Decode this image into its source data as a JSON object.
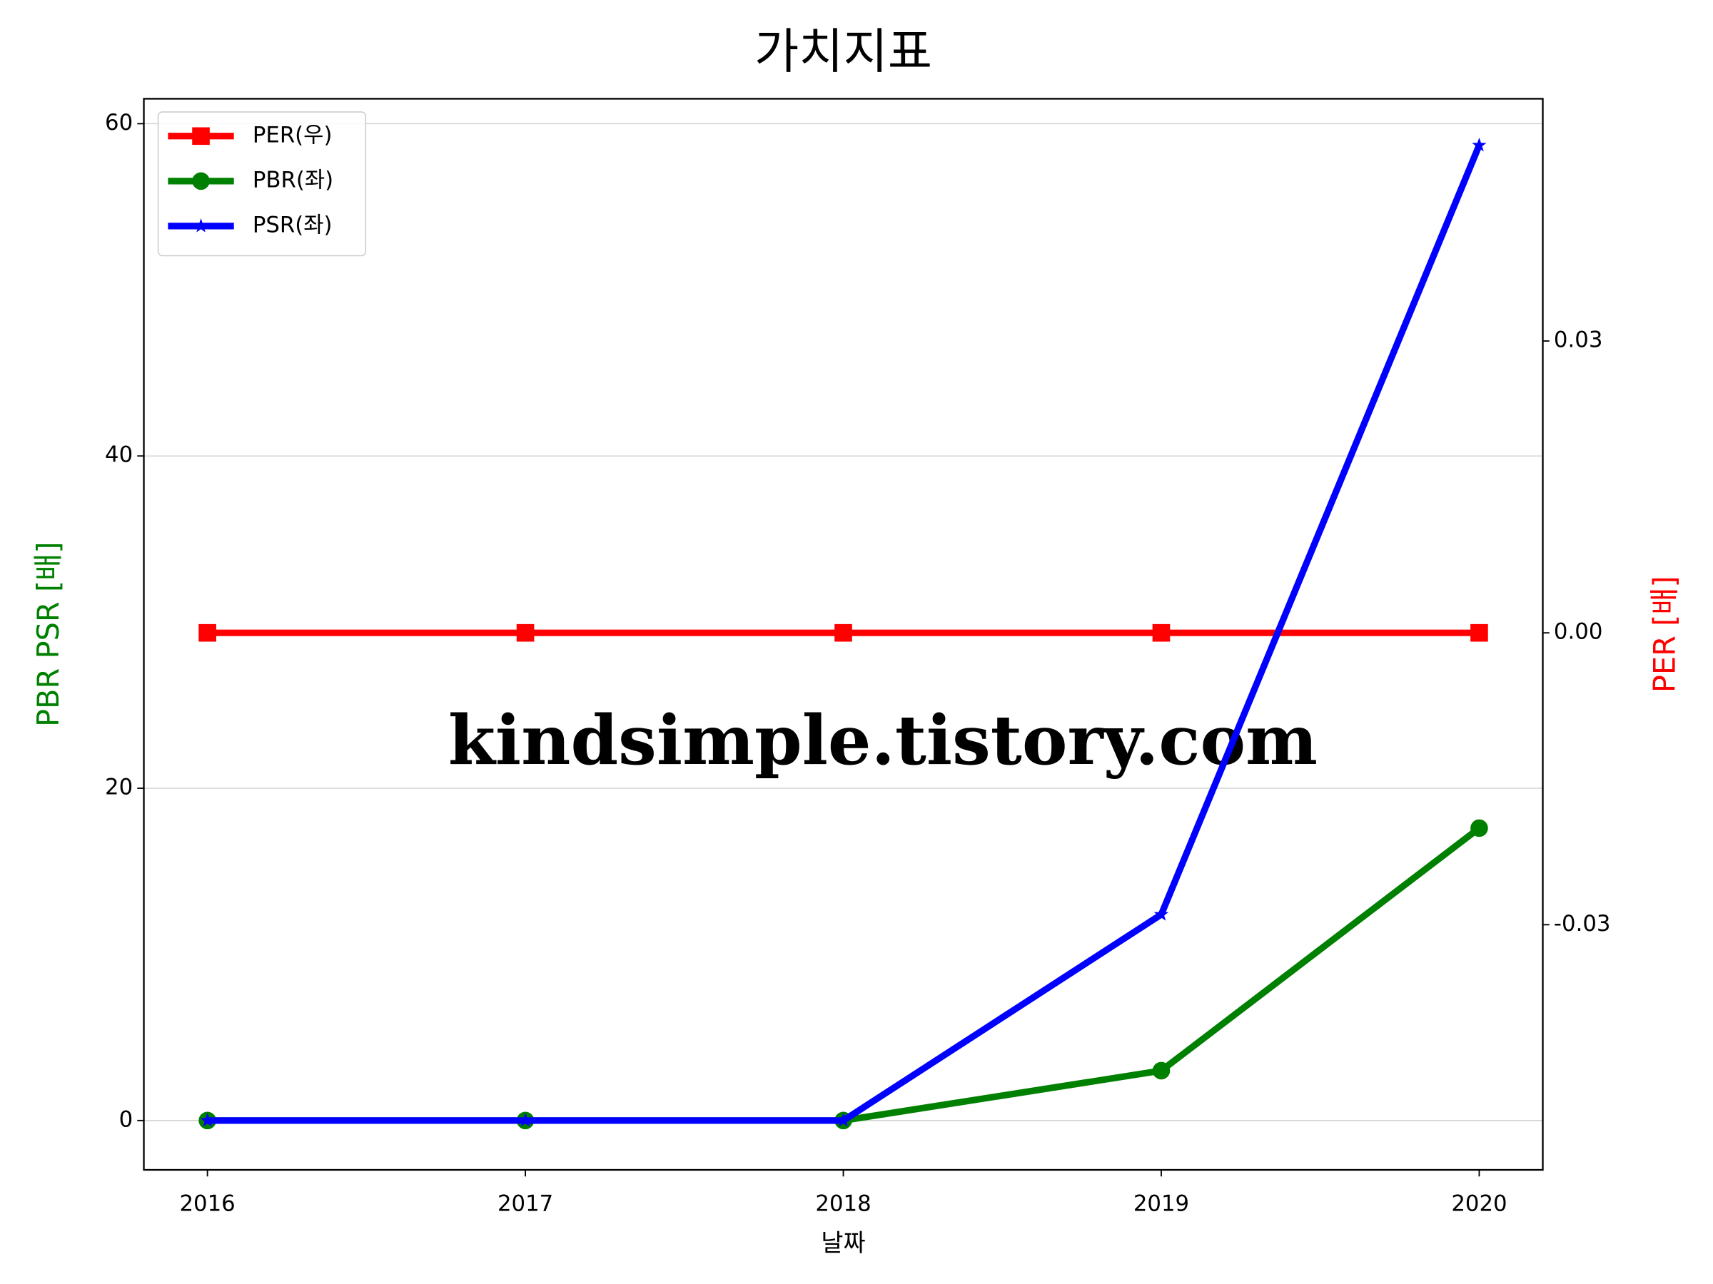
{
  "chart_data": {
    "type": "line",
    "title": "가치지표",
    "x_label": "날짜",
    "y_label": "PBR PSR [배]",
    "y_label_color": "#008000",
    "y2_label": "PER [배]",
    "y2_label_color": "#ff0000",
    "categories": [
      "2016",
      "2017",
      "2018",
      "2019",
      "2020"
    ],
    "series": [
      {
        "name": "PER(우)",
        "color": "#ff0000",
        "marker": "square",
        "axis": "y2",
        "values": [
          0,
          0,
          0,
          0,
          0
        ]
      },
      {
        "name": "PBR(좌)",
        "color": "#008000",
        "marker": "circle",
        "values": [
          0,
          0,
          0,
          3.0,
          17.6
        ]
      },
      {
        "name": "PSR(좌)",
        "color": "#0000ff",
        "marker": "star",
        "values": [
          0,
          0,
          0,
          12.4,
          58.7
        ]
      }
    ],
    "ylim": [
      -2.97,
      61.5
    ],
    "yticks": [
      0,
      20,
      40,
      60
    ],
    "y2lim": [
      -0.0552,
      0.0549
    ],
    "y2ticks": [
      0.03,
      {
        "value": 0,
        "label": "0.00"
      },
      -0.03
    ],
    "grid": true,
    "legend": "upper left",
    "annotation": "kindsimple.tistory.com",
    "annotation_color": "#e4a8ec"
  }
}
